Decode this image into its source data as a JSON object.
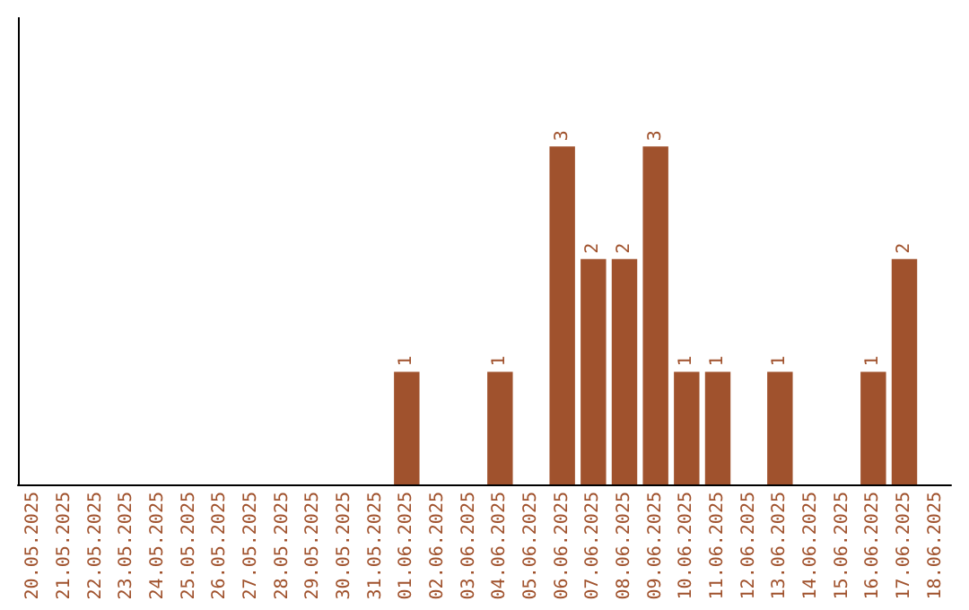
{
  "chart_data": {
    "type": "bar",
    "categories": [
      "20.05.2025",
      "21.05.2025",
      "22.05.2025",
      "23.05.2025",
      "24.05.2025",
      "25.05.2025",
      "26.05.2025",
      "27.05.2025",
      "28.05.2025",
      "29.05.2025",
      "30.05.2025",
      "31.05.2025",
      "01.06.2025",
      "02.06.2025",
      "03.06.2025",
      "04.06.2025",
      "05.06.2025",
      "06.06.2025",
      "07.06.2025",
      "08.06.2025",
      "09.06.2025",
      "10.06.2025",
      "11.06.2025",
      "12.06.2025",
      "13.06.2025",
      "14.06.2025",
      "15.06.2025",
      "16.06.2025",
      "17.06.2025",
      "18.06.2025"
    ],
    "values": [
      null,
      null,
      null,
      null,
      null,
      null,
      null,
      null,
      null,
      null,
      null,
      null,
      1,
      null,
      null,
      1,
      null,
      3,
      2,
      2,
      3,
      1,
      1,
      null,
      1,
      null,
      null,
      1,
      2,
      null
    ],
    "data_labels": true,
    "color": "#a0522d",
    "grid": false,
    "tick_labels": "x"
  }
}
